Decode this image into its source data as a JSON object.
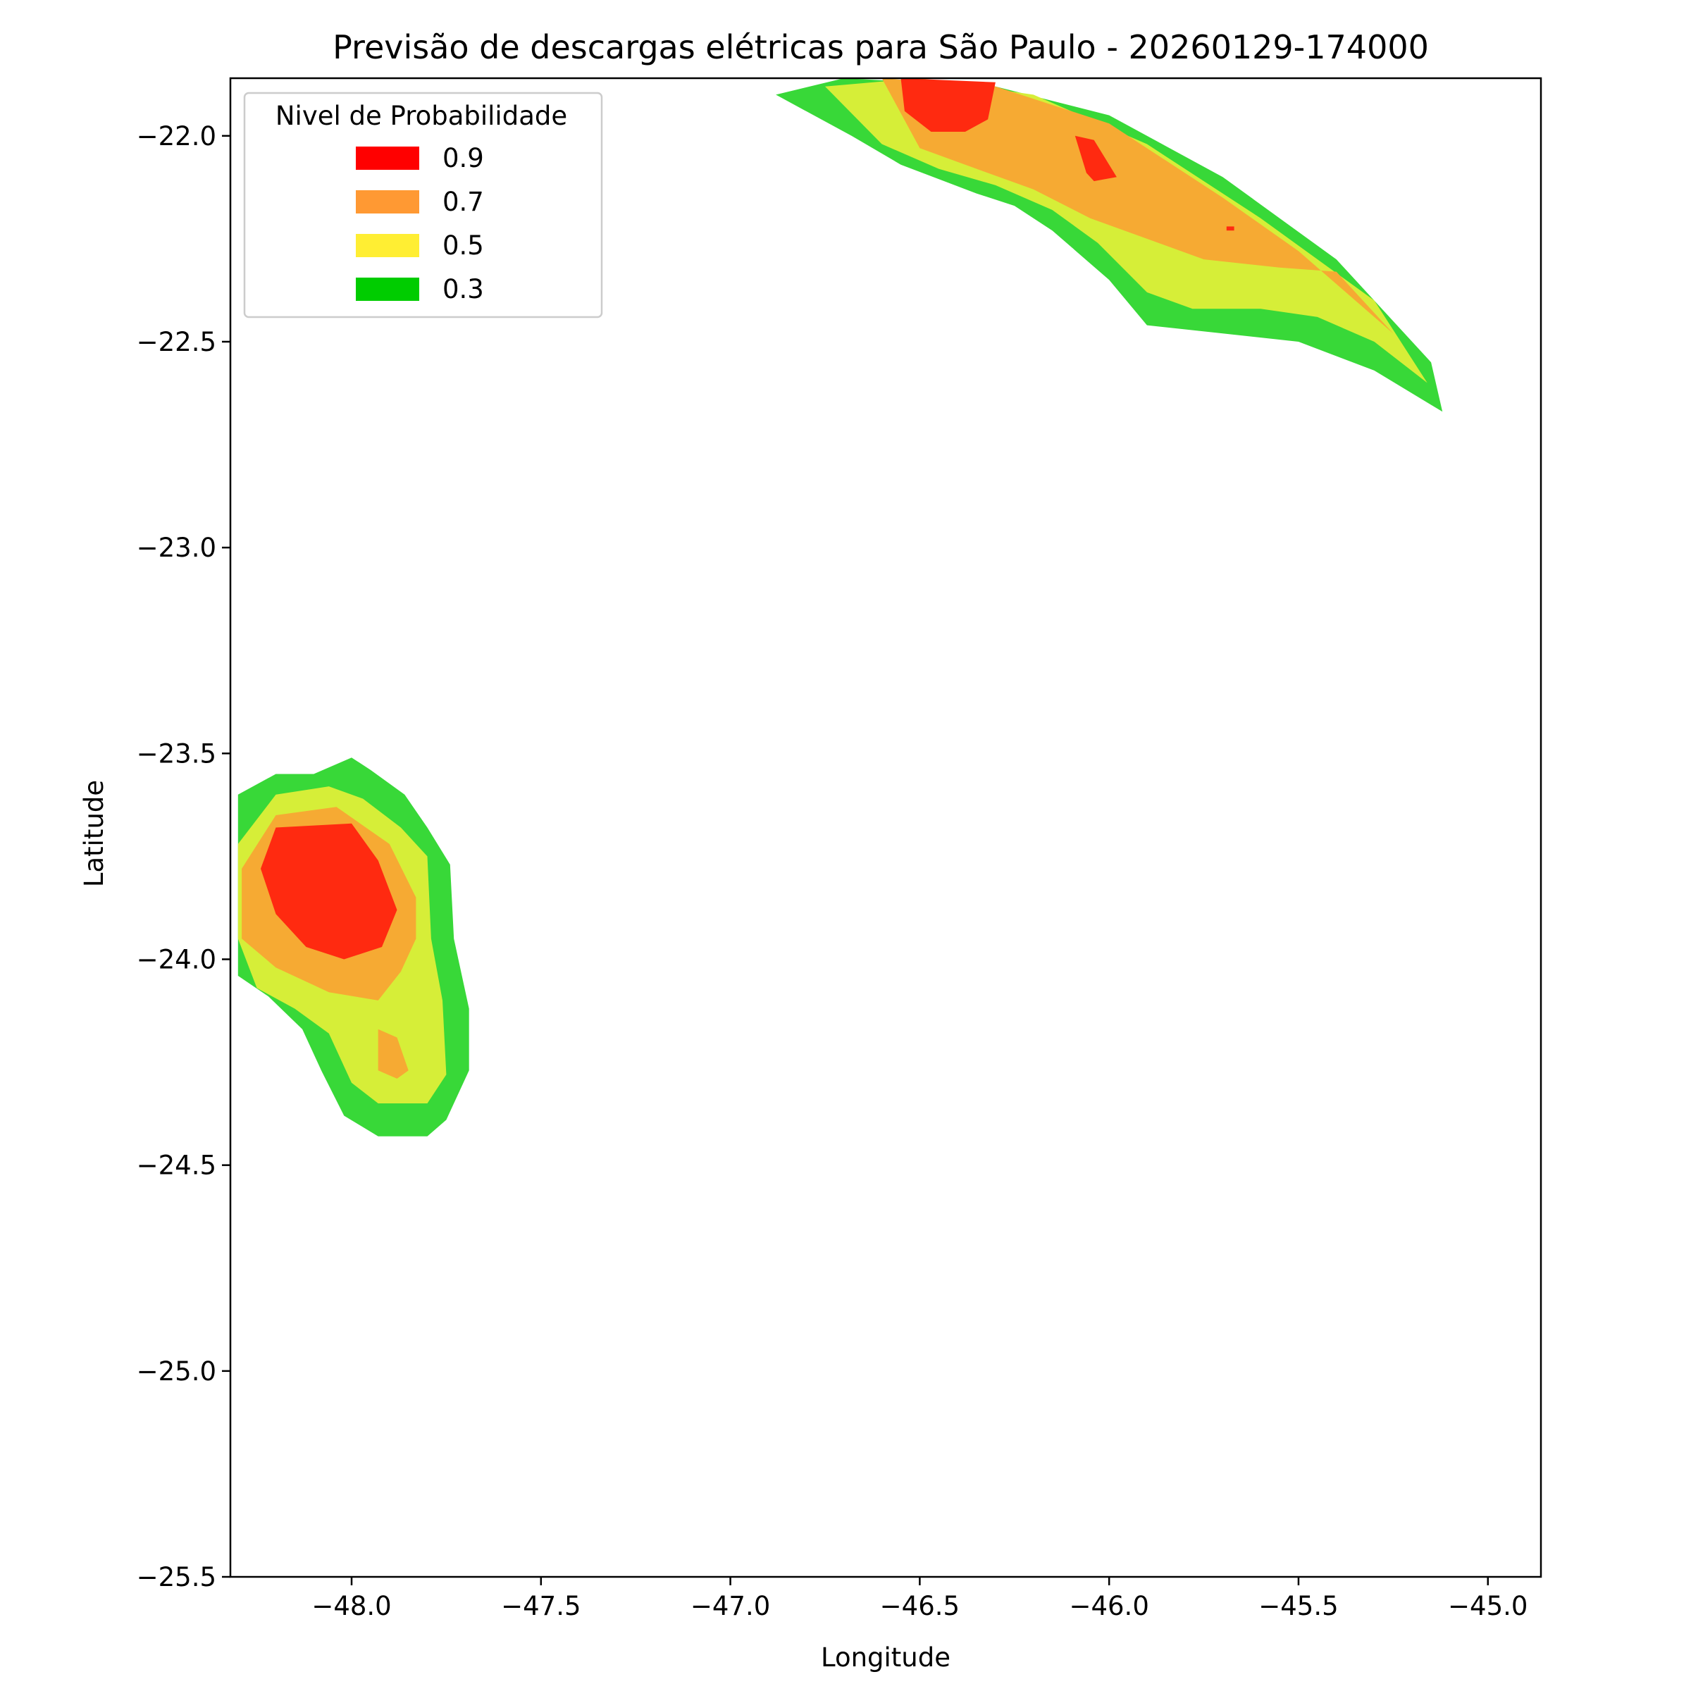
{
  "chart_data": {
    "type": "contourf",
    "title": "Previsão de descargas elétricas para São Paulo - 20260129-174000",
    "xlabel": "Longitude",
    "ylabel": "Latitude",
    "xlim": [
      -48.32,
      -44.86
    ],
    "ylim": [
      -25.5,
      -21.86
    ],
    "xticks": [
      -48.0,
      -47.5,
      -47.0,
      -46.5,
      -46.0,
      -45.5,
      -45.0
    ],
    "xtick_labels": [
      "−48.0",
      "−47.5",
      "−47.0",
      "−46.5",
      "−46.0",
      "−45.5",
      "−45.0"
    ],
    "yticks": [
      -22.0,
      -22.5,
      -23.0,
      -23.5,
      -24.0,
      -24.5,
      -25.0,
      -25.5
    ],
    "ytick_labels": [
      "−22.0",
      "−22.5",
      "−23.0",
      "−23.5",
      "−24.0",
      "−24.5",
      "−25.0",
      "−25.5"
    ],
    "grid": false,
    "legend": {
      "title": "Nivel de Probabilidade",
      "placement": "top-left",
      "entries": [
        {
          "label": "0.9",
          "color": "#ff0000"
        },
        {
          "label": "0.7",
          "color": "#ff9933"
        },
        {
          "label": "0.5",
          "color": "#ffee33"
        },
        {
          "label": "0.3",
          "color": "#00cc00"
        }
      ]
    },
    "level_fill_colors": {
      "0.3": "#38d838",
      "0.5": "#d6ee38",
      "0.7": "#f6aa33",
      "0.9": "#ff2a10"
    },
    "cells": [
      {
        "name": "southwest-cell",
        "levels": [
          {
            "level": "0.3",
            "polygon": [
              [
                -48.3,
                -23.6
              ],
              [
                -48.2,
                -23.55
              ],
              [
                -48.1,
                -23.55
              ],
              [
                -48.0,
                -23.51
              ],
              [
                -47.95,
                -23.54
              ],
              [
                -47.86,
                -23.6
              ],
              [
                -47.8,
                -23.68
              ],
              [
                -47.74,
                -23.77
              ],
              [
                -47.73,
                -23.95
              ],
              [
                -47.69,
                -24.12
              ],
              [
                -47.69,
                -24.27
              ],
              [
                -47.75,
                -24.39
              ],
              [
                -47.8,
                -24.43
              ],
              [
                -47.93,
                -24.43
              ],
              [
                -48.02,
                -24.38
              ],
              [
                -48.08,
                -24.27
              ],
              [
                -48.13,
                -24.17
              ],
              [
                -48.22,
                -24.09
              ],
              [
                -48.3,
                -24.04
              ]
            ]
          },
          {
            "level": "0.5",
            "polygon": [
              [
                -48.3,
                -23.72
              ],
              [
                -48.2,
                -23.6
              ],
              [
                -48.06,
                -23.58
              ],
              [
                -47.97,
                -23.61
              ],
              [
                -47.87,
                -23.68
              ],
              [
                -47.8,
                -23.75
              ],
              [
                -47.79,
                -23.95
              ],
              [
                -47.76,
                -24.1
              ],
              [
                -47.75,
                -24.28
              ],
              [
                -47.8,
                -24.35
              ],
              [
                -47.93,
                -24.35
              ],
              [
                -48.0,
                -24.3
              ],
              [
                -48.06,
                -24.18
              ],
              [
                -48.15,
                -24.12
              ],
              [
                -48.25,
                -24.07
              ],
              [
                -48.3,
                -23.95
              ]
            ]
          },
          {
            "level": "0.7",
            "polygon": [
              [
                -48.29,
                -23.78
              ],
              [
                -48.2,
                -23.65
              ],
              [
                -48.04,
                -23.63
              ],
              [
                -47.9,
                -23.72
              ],
              [
                -47.83,
                -23.85
              ],
              [
                -47.83,
                -23.95
              ],
              [
                -47.87,
                -24.03
              ],
              [
                -47.93,
                -24.1
              ],
              [
                -48.06,
                -24.08
              ],
              [
                -48.2,
                -24.02
              ],
              [
                -48.29,
                -23.95
              ]
            ]
          },
          {
            "level": "0.7",
            "polygon": [
              [
                -47.93,
                -24.17
              ],
              [
                -47.88,
                -24.19
              ],
              [
                -47.85,
                -24.27
              ],
              [
                -47.88,
                -24.29
              ],
              [
                -47.93,
                -24.27
              ]
            ]
          },
          {
            "level": "0.9",
            "polygon": [
              [
                -48.2,
                -23.68
              ],
              [
                -48.0,
                -23.67
              ],
              [
                -47.93,
                -23.76
              ],
              [
                -47.88,
                -23.88
              ],
              [
                -47.92,
                -23.97
              ],
              [
                -48.02,
                -24.0
              ],
              [
                -48.12,
                -23.97
              ],
              [
                -48.2,
                -23.89
              ],
              [
                -48.24,
                -23.78
              ]
            ]
          }
        ]
      },
      {
        "name": "northeast-cell",
        "levels": [
          {
            "level": "0.3",
            "polygon": [
              [
                -46.88,
                -21.9
              ],
              [
                -46.7,
                -21.86
              ],
              [
                -46.3,
                -21.88
              ],
              [
                -46.0,
                -21.95
              ],
              [
                -45.7,
                -22.1
              ],
              [
                -45.4,
                -22.3
              ],
              [
                -45.15,
                -22.55
              ],
              [
                -45.12,
                -22.67
              ],
              [
                -45.3,
                -22.57
              ],
              [
                -45.5,
                -22.5
              ],
              [
                -45.7,
                -22.48
              ],
              [
                -45.9,
                -22.46
              ],
              [
                -46.0,
                -22.35
              ],
              [
                -46.15,
                -22.23
              ],
              [
                -46.25,
                -22.17
              ],
              [
                -46.35,
                -22.14
              ],
              [
                -46.55,
                -22.07
              ],
              [
                -46.68,
                -22.0
              ]
            ]
          },
          {
            "level": "0.5",
            "polygon": [
              [
                -46.75,
                -21.88
              ],
              [
                -46.5,
                -21.86
              ],
              [
                -46.2,
                -21.9
              ],
              [
                -45.9,
                -22.02
              ],
              [
                -45.6,
                -22.2
              ],
              [
                -45.3,
                -22.4
              ],
              [
                -45.16,
                -22.6
              ],
              [
                -45.3,
                -22.5
              ],
              [
                -45.45,
                -22.44
              ],
              [
                -45.6,
                -22.42
              ],
              [
                -45.78,
                -22.42
              ],
              [
                -45.9,
                -22.38
              ],
              [
                -46.03,
                -22.26
              ],
              [
                -46.15,
                -22.18
              ],
              [
                -46.3,
                -22.12
              ],
              [
                -46.45,
                -22.08
              ],
              [
                -46.6,
                -22.02
              ]
            ]
          },
          {
            "level": "0.7",
            "polygon": [
              [
                -46.6,
                -21.86
              ],
              [
                -46.3,
                -21.88
              ],
              [
                -46.0,
                -21.97
              ],
              [
                -45.7,
                -22.15
              ],
              [
                -45.5,
                -22.28
              ],
              [
                -45.25,
                -22.48
              ],
              [
                -45.4,
                -22.33
              ],
              [
                -45.55,
                -22.32
              ],
              [
                -45.75,
                -22.3
              ],
              [
                -45.9,
                -22.25
              ],
              [
                -46.05,
                -22.2
              ],
              [
                -46.2,
                -22.13
              ],
              [
                -46.35,
                -22.08
              ],
              [
                -46.5,
                -22.03
              ]
            ]
          },
          {
            "level": "0.9",
            "polygon": [
              [
                -46.55,
                -21.86
              ],
              [
                -46.3,
                -21.87
              ],
              [
                -46.32,
                -21.96
              ],
              [
                -46.38,
                -21.99
              ],
              [
                -46.47,
                -21.99
              ],
              [
                -46.54,
                -21.94
              ]
            ]
          },
          {
            "level": "0.9",
            "polygon": [
              [
                -46.09,
                -22.0
              ],
              [
                -46.04,
                -22.01
              ],
              [
                -45.98,
                -22.1
              ],
              [
                -46.04,
                -22.11
              ],
              [
                -46.06,
                -22.09
              ]
            ]
          },
          {
            "level": "0.9",
            "polygon": [
              [
                -45.69,
                -22.22
              ],
              [
                -45.67,
                -22.22
              ],
              [
                -45.67,
                -22.23
              ],
              [
                -45.69,
                -22.23
              ]
            ]
          }
        ]
      }
    ]
  }
}
